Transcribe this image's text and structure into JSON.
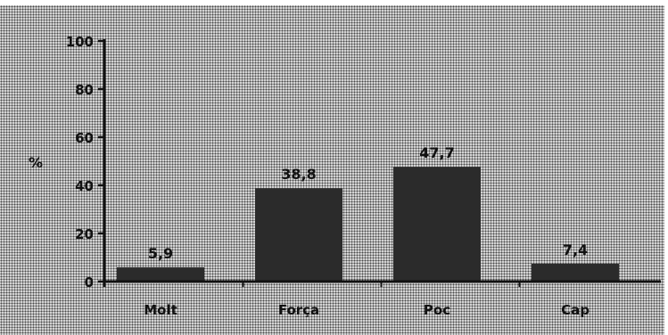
{
  "chart_data": {
    "type": "bar",
    "categories": [
      "Molt",
      "Força",
      "Poc",
      "Cap"
    ],
    "values": [
      5.9,
      38.8,
      47.7,
      7.4
    ],
    "value_labels": [
      "5,9",
      "38,8",
      "47,7",
      "7,4"
    ],
    "ylabel": "%",
    "ylim": [
      0,
      100
    ],
    "yticks": [
      0,
      20,
      40,
      60,
      80,
      100
    ],
    "grid": false,
    "colors": {
      "bar": "#2b2b2b",
      "axis": "#111111",
      "text": "#111111",
      "background": "#d3d3d3"
    }
  }
}
